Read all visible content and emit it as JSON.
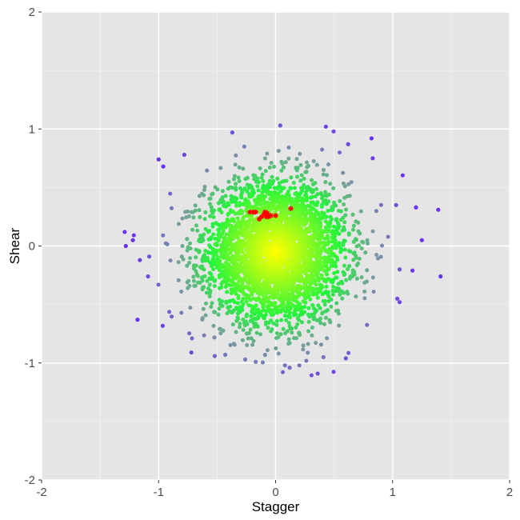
{
  "chart_data": {
    "type": "scatter",
    "title": "",
    "xlabel": "Stagger",
    "ylabel": "Shear",
    "xlim": [
      -2,
      2
    ],
    "ylim": [
      -2,
      2
    ],
    "x_ticks": [
      "-2",
      "-1",
      "0",
      "1",
      "2"
    ],
    "y_ticks": [
      "-2",
      "-1",
      "0",
      "1",
      "2"
    ],
    "grid": true,
    "legend": "none",
    "colors": {
      "panel": "#e5e5e5",
      "grid_major": "#ffffff",
      "grid_minor": "#f2f2f2",
      "center": "#ffff00",
      "mid": "#22f53a",
      "outer": "#7a9aa0",
      "edge": "#6a30f0",
      "highlight": "#ff0000"
    },
    "point_cloud": {
      "description_only_for_render": false,
      "count": 3600,
      "center": [
        0.0,
        -0.05
      ],
      "sd_x": 0.3,
      "sd_y": 0.3
    },
    "series": [
      {
        "values": [
          [
            -1.29,
            0.12
          ],
          [
            -1.28,
            0.0
          ],
          [
            -1.22,
            0.05
          ],
          [
            -1.18,
            -0.63
          ],
          [
            -1.16,
            -0.12
          ],
          [
            -1.0,
            0.74
          ],
          [
            -0.96,
            0.68
          ],
          [
            -0.78,
            0.78
          ],
          [
            -0.72,
            -0.91
          ],
          [
            -0.52,
            -0.94
          ],
          [
            -0.43,
            -0.93
          ],
          [
            -0.37,
            0.97
          ],
          [
            -0.26,
            -0.97
          ],
          [
            -0.17,
            -0.99
          ],
          [
            -0.09,
            -0.93
          ],
          [
            0.04,
            1.03
          ],
          [
            0.08,
            -1.02
          ],
          [
            0.12,
            -1.04
          ],
          [
            0.36,
            -1.09
          ],
          [
            0.43,
            1.02
          ],
          [
            0.6,
            -0.96
          ],
          [
            0.62,
            0.87
          ],
          [
            0.82,
            0.92
          ],
          [
            0.83,
            0.75
          ],
          [
            1.03,
            0.35
          ],
          [
            1.17,
            -0.21
          ],
          [
            1.2,
            0.33
          ],
          [
            1.25,
            0.05
          ],
          [
            1.39,
            0.31
          ],
          [
            1.41,
            -0.26
          ],
          [
            1.06,
            -0.2
          ],
          [
            1.04,
            -0.45
          ],
          [
            1.06,
            -0.48
          ],
          [
            -1.09,
            -0.26
          ],
          [
            -1.08,
            -0.09
          ]
        ]
      },
      {
        "marker": "star",
        "values": [
          [
            -0.22,
            0.29
          ],
          [
            -0.19,
            0.29
          ],
          [
            -0.17,
            0.29
          ],
          [
            -0.14,
            0.23
          ],
          [
            -0.12,
            0.25
          ],
          [
            -0.1,
            0.27
          ],
          [
            -0.09,
            0.29
          ],
          [
            -0.08,
            0.25
          ],
          [
            -0.07,
            0.28
          ],
          [
            -0.06,
            0.25
          ],
          [
            -0.04,
            0.26
          ],
          [
            0.0,
            0.26
          ],
          [
            0.13,
            0.32
          ]
        ]
      }
    ]
  }
}
